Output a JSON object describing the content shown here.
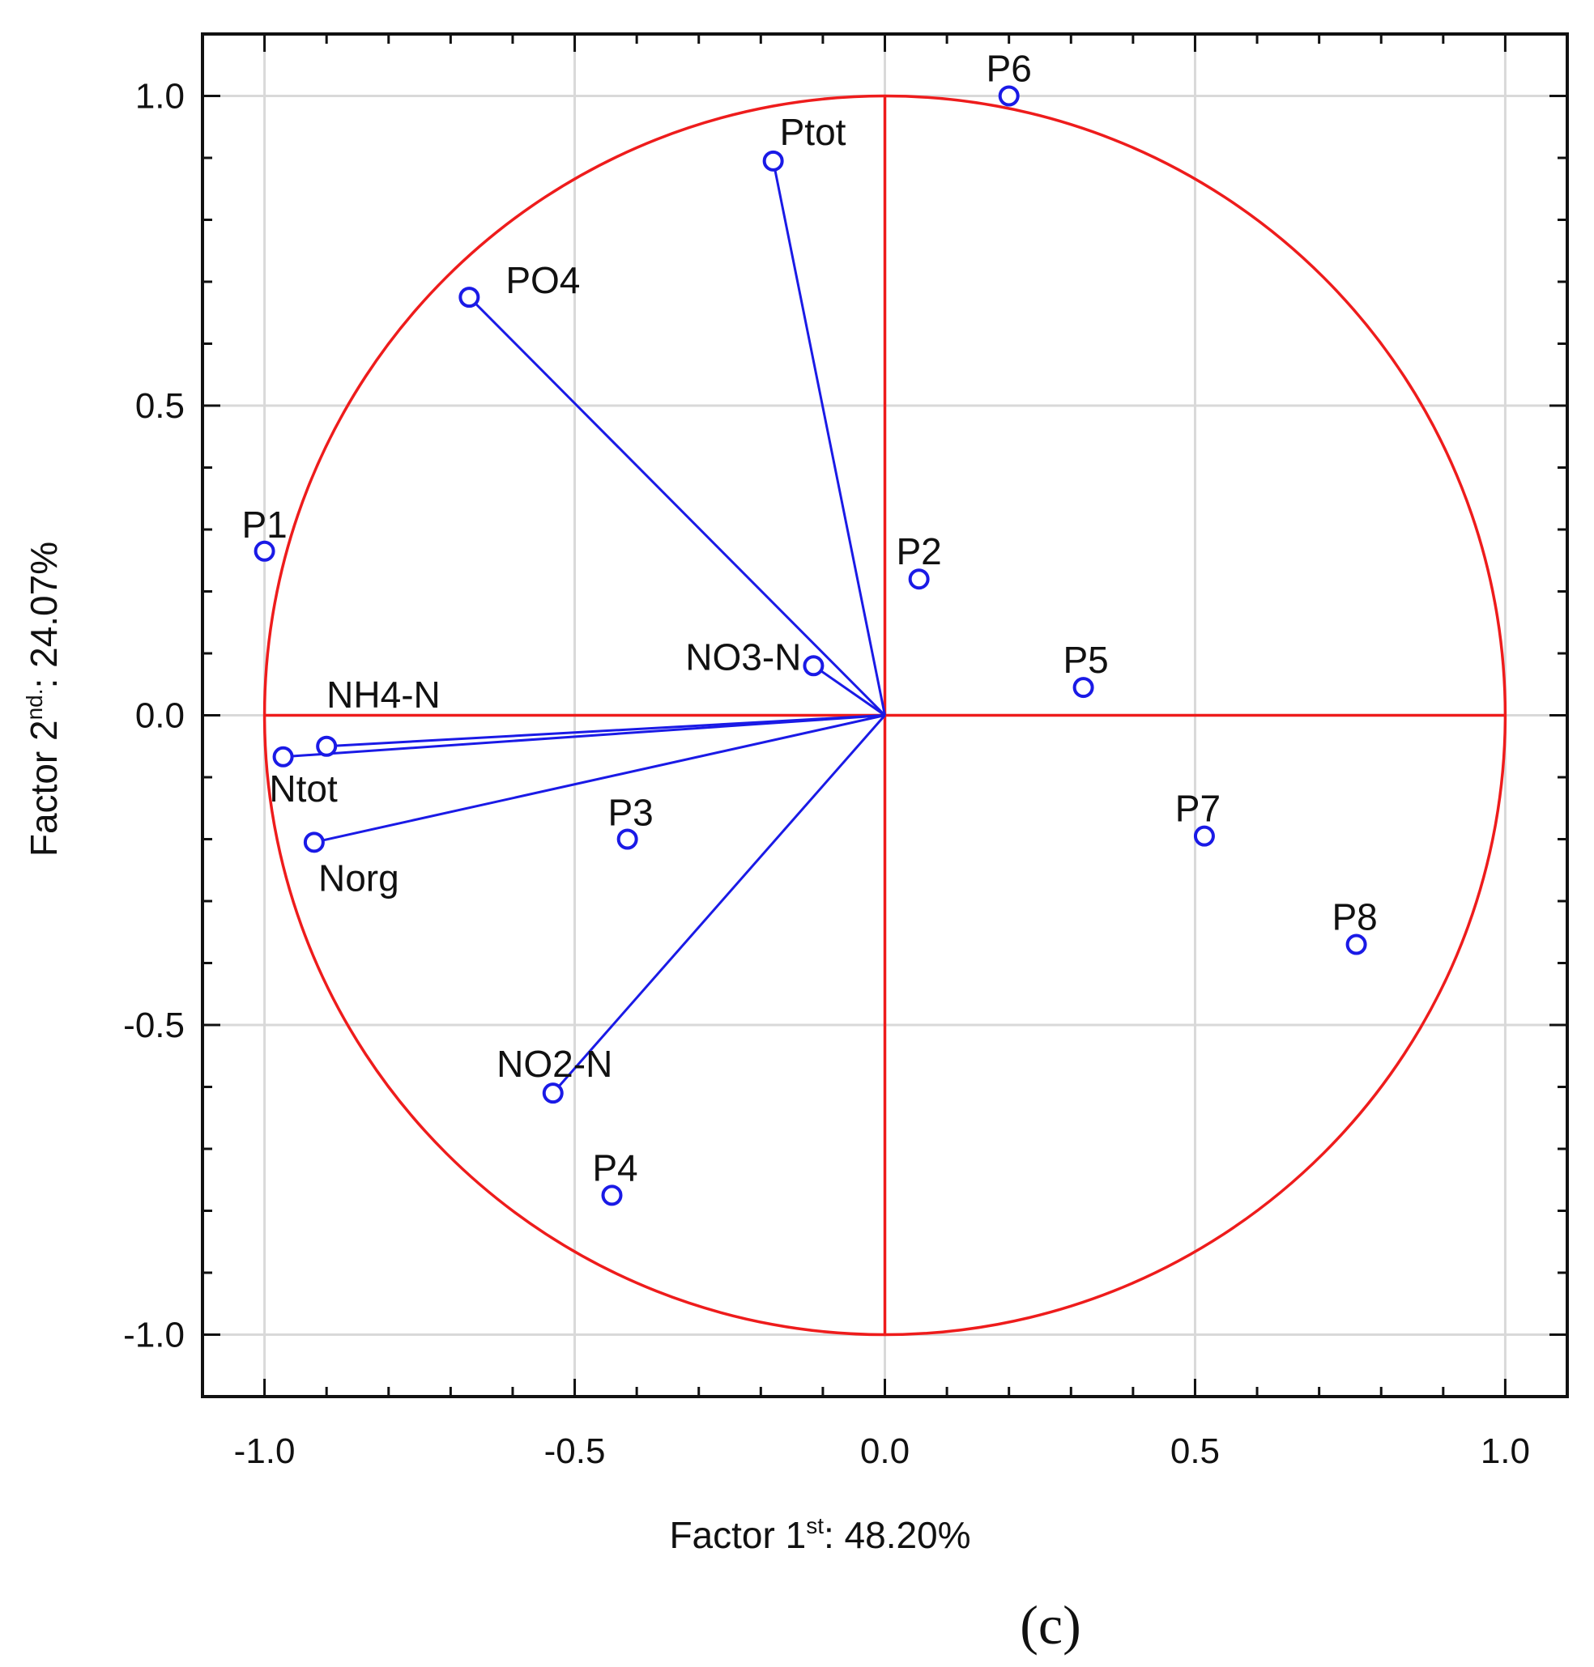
{
  "chart_data": {
    "type": "scatter",
    "title": "",
    "panel_label": "(c)",
    "xlabel": {
      "main": "Factor 1",
      "sup": "st",
      "rest": ": 48.20%"
    },
    "ylabel": {
      "main": "Factor 2",
      "sup": "nd.",
      "rest": ": 24.07%"
    },
    "xlim": [
      -1.1,
      1.1
    ],
    "ylim": [
      -1.1,
      1.1
    ],
    "xticks": [
      {
        "value": -1.0,
        "label": "-1.0"
      },
      {
        "value": -0.5,
        "label": "-0.5"
      },
      {
        "value": 0.0,
        "label": "0.0"
      },
      {
        "value": 0.5,
        "label": "0.5"
      },
      {
        "value": 1.0,
        "label": "1.0"
      }
    ],
    "yticks": [
      {
        "value": 1.0,
        "label": "1.0"
      },
      {
        "value": 0.5,
        "label": "0.5"
      },
      {
        "value": 0.0,
        "label": "0.0"
      },
      {
        "value": -0.5,
        "label": "-0.5"
      },
      {
        "value": -1.0,
        "label": "-1.0"
      }
    ],
    "grid": true,
    "unit_circle": true,
    "colors": {
      "circle": "#ee1c1c",
      "axes_lines": "#ee1c1c",
      "vectors": "#1a1ae6",
      "points": "#1a1ae6",
      "grid": "#d9d9d9",
      "frame": "#111111"
    },
    "series": [
      {
        "name": "variables",
        "draw_vectors": true,
        "points": [
          {
            "label": "Ptot",
            "x": -0.18,
            "y": 0.895
          },
          {
            "label": "PO4",
            "x": -0.67,
            "y": 0.675
          },
          {
            "label": "NO3-N",
            "x": -0.115,
            "y": 0.08
          },
          {
            "label": "NH4-N",
            "x": -0.9,
            "y": -0.05
          },
          {
            "label": "Ntot",
            "x": -0.97,
            "y": -0.067
          },
          {
            "label": "Norg",
            "x": -0.92,
            "y": -0.205
          },
          {
            "label": "NO2-N",
            "x": -0.535,
            "y": -0.61
          }
        ]
      },
      {
        "name": "sites",
        "draw_vectors": false,
        "points": [
          {
            "label": "P1",
            "x": -1.0,
            "y": 0.265
          },
          {
            "label": "P2",
            "x": 0.055,
            "y": 0.22
          },
          {
            "label": "P3",
            "x": -0.415,
            "y": -0.2
          },
          {
            "label": "P4",
            "x": -0.44,
            "y": -0.775
          },
          {
            "label": "P5",
            "x": 0.32,
            "y": 0.045
          },
          {
            "label": "P6",
            "x": 0.2,
            "y": 1.0
          },
          {
            "label": "P7",
            "x": 0.515,
            "y": -0.195
          },
          {
            "label": "P8",
            "x": 0.76,
            "y": -0.37
          }
        ]
      }
    ]
  }
}
